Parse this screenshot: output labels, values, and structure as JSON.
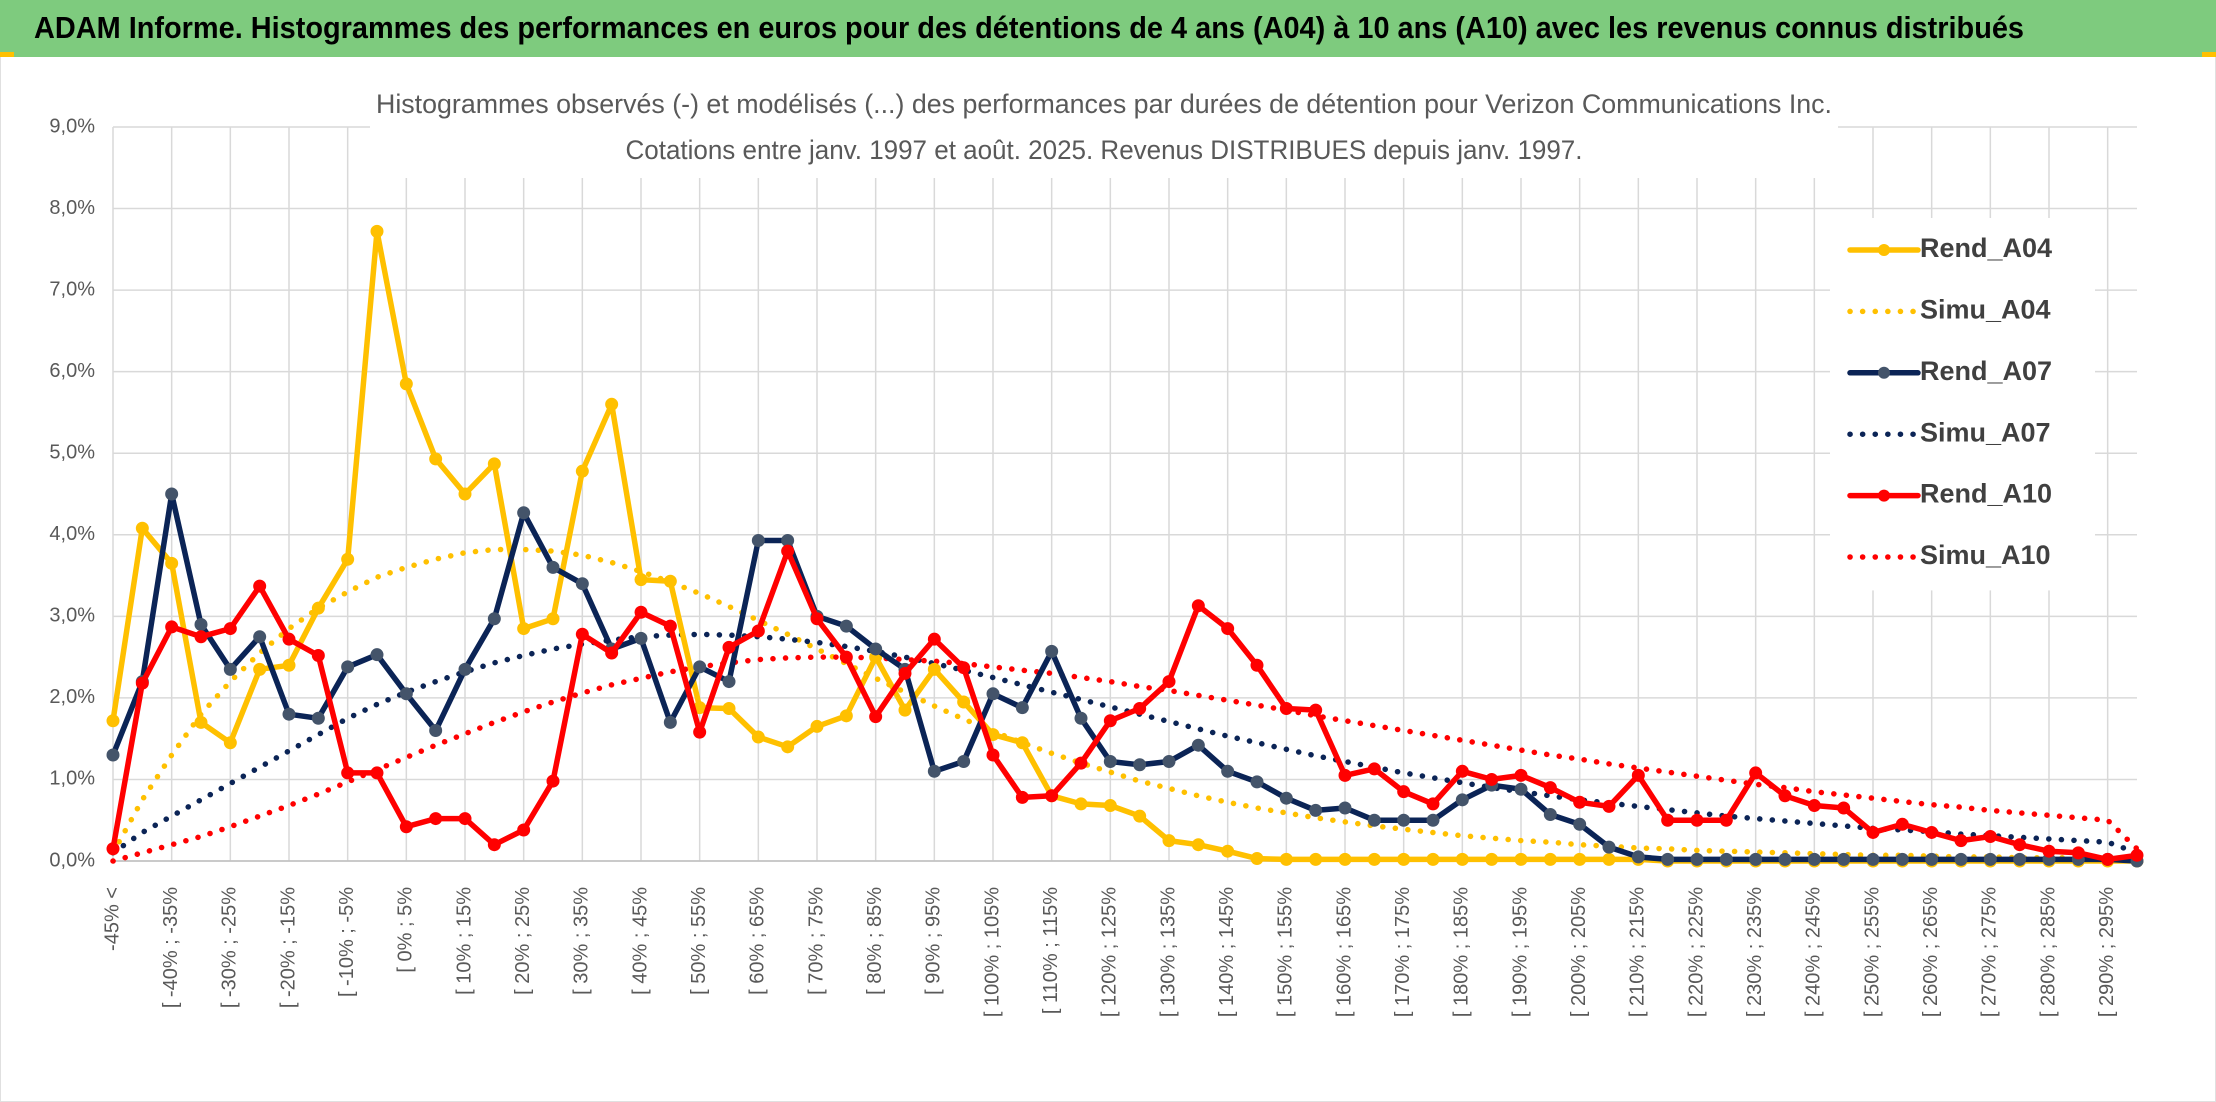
{
  "header": {
    "title": "ADAM Informe. Histogrammes des performances en euros pour des détentions de 4 ans (A04) à 10 ans (A10) avec les revenus connus distribués"
  },
  "chart_data": {
    "type": "line",
    "title": "Histogrammes observés (-) et modélisés (...) des performances par durées de détention pour Verizon Communications Inc.",
    "subtitle": "Cotations entre janv. 1997 et août. 2025. Revenus DISTRIBUES depuis janv. 1997.",
    "categories": [
      "-45% <",
      null,
      "[ -40% ; -35%",
      null,
      "[ -30% ; -25%",
      null,
      "[ -20% ; -15%",
      null,
      "[ -10% ; -5%",
      null,
      "[ 0% ; 5%",
      null,
      "[ 10% ; 15%",
      null,
      "[ 20% ; 25%",
      null,
      "[ 30% ; 35%",
      null,
      "[ 40% ; 45%",
      null,
      "[ 50% ; 55%",
      null,
      "[ 60% ; 65%",
      null,
      "[ 70% ; 75%",
      null,
      "[ 80% ; 85%",
      null,
      "[ 90% ; 95%",
      null,
      "[ 100% ; 105%",
      null,
      "[ 110% ; 115%",
      null,
      "[ 120% ; 125%",
      null,
      "[ 130% ; 135%",
      null,
      "[ 140% ; 145%",
      null,
      "[ 150% ; 155%",
      null,
      "[ 160% ; 165%",
      null,
      "[ 170% ; 175%",
      null,
      "[ 180% ; 185%",
      null,
      "[ 190% ; 195%",
      null,
      "[ 200% ; 205%",
      null,
      "[ 210% ; 215%",
      null,
      "[ 220% ; 225%",
      null,
      "[ 230% ; 235%",
      null,
      "[ 240% ; 245%",
      null,
      "[ 250% ; 255%",
      null,
      "[ 260% ; 265%",
      null,
      "[ 270% ; 275%",
      null,
      "[ 280% ; 285%",
      null,
      "[ 290% ; 295%",
      null
    ],
    "ylim": [
      0,
      9
    ],
    "yticks": [
      {
        "value": 0,
        "label": "0,0%"
      },
      {
        "value": 1,
        "label": "1,0%"
      },
      {
        "value": 2,
        "label": "2,0%"
      },
      {
        "value": 3,
        "label": "3,0%"
      },
      {
        "value": 4,
        "label": "4,0%"
      },
      {
        "value": 5,
        "label": "5,0%"
      },
      {
        "value": 6,
        "label": "6,0%"
      },
      {
        "value": 7,
        "label": "7,0%"
      },
      {
        "value": 8,
        "label": "8,0%"
      },
      {
        "value": 9,
        "label": "9,0%"
      }
    ],
    "grid": true,
    "legend": "right",
    "series": [
      {
        "name": "Rend_A04",
        "color": "#ffc000",
        "style": "solid",
        "markers": true,
        "marker_color": "#ffc000",
        "values": [
          1.72,
          4.08,
          3.65,
          1.7,
          1.45,
          2.35,
          2.4,
          3.1,
          3.7,
          7.72,
          5.85,
          4.93,
          4.5,
          4.87,
          2.85,
          2.97,
          4.78,
          5.6,
          3.45,
          3.43,
          1.88,
          1.87,
          1.52,
          1.4,
          1.65,
          1.78,
          2.5,
          1.85,
          2.35,
          1.95,
          1.55,
          1.45,
          0.8,
          0.7,
          0.68,
          0.55,
          0.25,
          0.2,
          0.12,
          0.03,
          0.02,
          0.02,
          0.02,
          0.02,
          0.02,
          0.02,
          0.02,
          0.02,
          0.02,
          0.02,
          0.02,
          0.02,
          0.02,
          0,
          0,
          0,
          0,
          0,
          0,
          0,
          0,
          0,
          0,
          0,
          0,
          0,
          0,
          0,
          0,
          0
        ]
      },
      {
        "name": "Simu_A04",
        "color": "#ffc000",
        "style": "dotted",
        "markers": false,
        "values": [
          0.1,
          0.75,
          1.3,
          1.8,
          2.2,
          2.55,
          2.85,
          3.1,
          3.3,
          3.48,
          3.6,
          3.7,
          3.78,
          3.82,
          3.82,
          3.8,
          3.75,
          3.66,
          3.55,
          3.42,
          3.28,
          3.12,
          2.95,
          2.78,
          2.6,
          2.42,
          2.24,
          2.07,
          1.9,
          1.74,
          1.59,
          1.45,
          1.32,
          1.2,
          1.09,
          0.98,
          0.89,
          0.8,
          0.72,
          0.65,
          0.59,
          0.53,
          0.48,
          0.43,
          0.39,
          0.35,
          0.31,
          0.28,
          0.25,
          0.23,
          0.2,
          0.18,
          0.16,
          0.15,
          0.13,
          0.12,
          0.11,
          0.1,
          0.09,
          0.08,
          0.07,
          0.07,
          0.06,
          0.05,
          0.05,
          0.04,
          0.04,
          0.04,
          0.03,
          0.03
        ]
      },
      {
        "name": "Rend_A07",
        "color": "#0b2456",
        "style": "solid",
        "markers": true,
        "marker_color": "#44546a",
        "values": [
          1.3,
          2.2,
          4.5,
          2.9,
          2.35,
          2.75,
          1.8,
          1.75,
          2.38,
          2.53,
          2.05,
          1.6,
          2.35,
          2.97,
          4.27,
          3.6,
          3.4,
          2.6,
          2.73,
          1.7,
          2.38,
          2.2,
          3.93,
          3.93,
          3.0,
          2.88,
          2.6,
          2.35,
          1.1,
          1.22,
          2.05,
          1.88,
          2.57,
          1.75,
          1.22,
          1.18,
          1.22,
          1.42,
          1.1,
          0.97,
          0.77,
          0.62,
          0.65,
          0.5,
          0.5,
          0.5,
          0.75,
          0.93,
          0.88,
          0.57,
          0.45,
          0.17,
          0.05,
          0.02,
          0.02,
          0.02,
          0.02,
          0.02,
          0.02,
          0.02,
          0.02,
          0.02,
          0.02,
          0.02,
          0.02,
          0.02,
          0.02,
          0.02,
          0.02,
          0
        ]
      },
      {
        "name": "Simu_A07",
        "color": "#0b2456",
        "style": "dotted",
        "markers": false,
        "values": [
          0.1,
          0.35,
          0.55,
          0.75,
          0.95,
          1.15,
          1.35,
          1.55,
          1.75,
          1.92,
          2.07,
          2.2,
          2.32,
          2.43,
          2.52,
          2.6,
          2.66,
          2.71,
          2.75,
          2.77,
          2.78,
          2.77,
          2.75,
          2.72,
          2.68,
          2.63,
          2.57,
          2.5,
          2.42,
          2.34,
          2.25,
          2.16,
          2.07,
          1.98,
          1.89,
          1.8,
          1.71,
          1.62,
          1.53,
          1.45,
          1.37,
          1.29,
          1.22,
          1.15,
          1.08,
          1.02,
          0.96,
          0.9,
          0.85,
          0.8,
          0.75,
          0.71,
          0.67,
          0.63,
          0.59,
          0.55,
          0.52,
          0.49,
          0.46,
          0.43,
          0.4,
          0.38,
          0.36,
          0.33,
          0.31,
          0.29,
          0.27,
          0.25,
          0.23,
          0.1
        ]
      },
      {
        "name": "Rend_A10",
        "color": "#ff0000",
        "style": "solid",
        "markers": true,
        "marker_color": "#ff0000",
        "values": [
          0.15,
          2.18,
          2.87,
          2.75,
          2.85,
          3.37,
          2.72,
          2.52,
          1.08,
          1.08,
          0.42,
          0.52,
          0.52,
          0.2,
          0.38,
          0.98,
          2.78,
          2.55,
          3.05,
          2.88,
          1.58,
          2.62,
          2.82,
          3.8,
          2.97,
          2.5,
          1.77,
          2.3,
          2.72,
          2.37,
          1.3,
          0.78,
          0.8,
          1.2,
          1.72,
          1.87,
          2.2,
          3.13,
          2.85,
          2.4,
          1.87,
          1.85,
          1.05,
          1.13,
          0.85,
          0.7,
          1.1,
          1.0,
          1.05,
          0.9,
          0.72,
          0.67,
          1.05,
          0.5,
          0.5,
          0.5,
          1.08,
          0.8,
          0.68,
          0.65,
          0.35,
          0.45,
          0.35,
          0.25,
          0.3,
          0.2,
          0.12,
          0.1,
          0.02,
          0.07
        ]
      },
      {
        "name": "Simu_A10",
        "color": "#ff0000",
        "style": "dotted",
        "markers": false,
        "values": [
          0.0,
          0.1,
          0.2,
          0.3,
          0.42,
          0.55,
          0.68,
          0.82,
          0.97,
          1.12,
          1.27,
          1.42,
          1.56,
          1.7,
          1.83,
          1.95,
          2.06,
          2.16,
          2.24,
          2.32,
          2.38,
          2.43,
          2.47,
          2.49,
          2.5,
          2.5,
          2.49,
          2.47,
          2.45,
          2.42,
          2.38,
          2.34,
          2.3,
          2.25,
          2.2,
          2.14,
          2.09,
          2.03,
          1.97,
          1.91,
          1.85,
          1.78,
          1.72,
          1.66,
          1.6,
          1.54,
          1.48,
          1.42,
          1.36,
          1.3,
          1.25,
          1.19,
          1.14,
          1.09,
          1.04,
          0.99,
          0.94,
          0.9,
          0.85,
          0.81,
          0.77,
          0.73,
          0.69,
          0.66,
          0.62,
          0.59,
          0.56,
          0.53,
          0.5,
          0.15
        ]
      }
    ]
  }
}
